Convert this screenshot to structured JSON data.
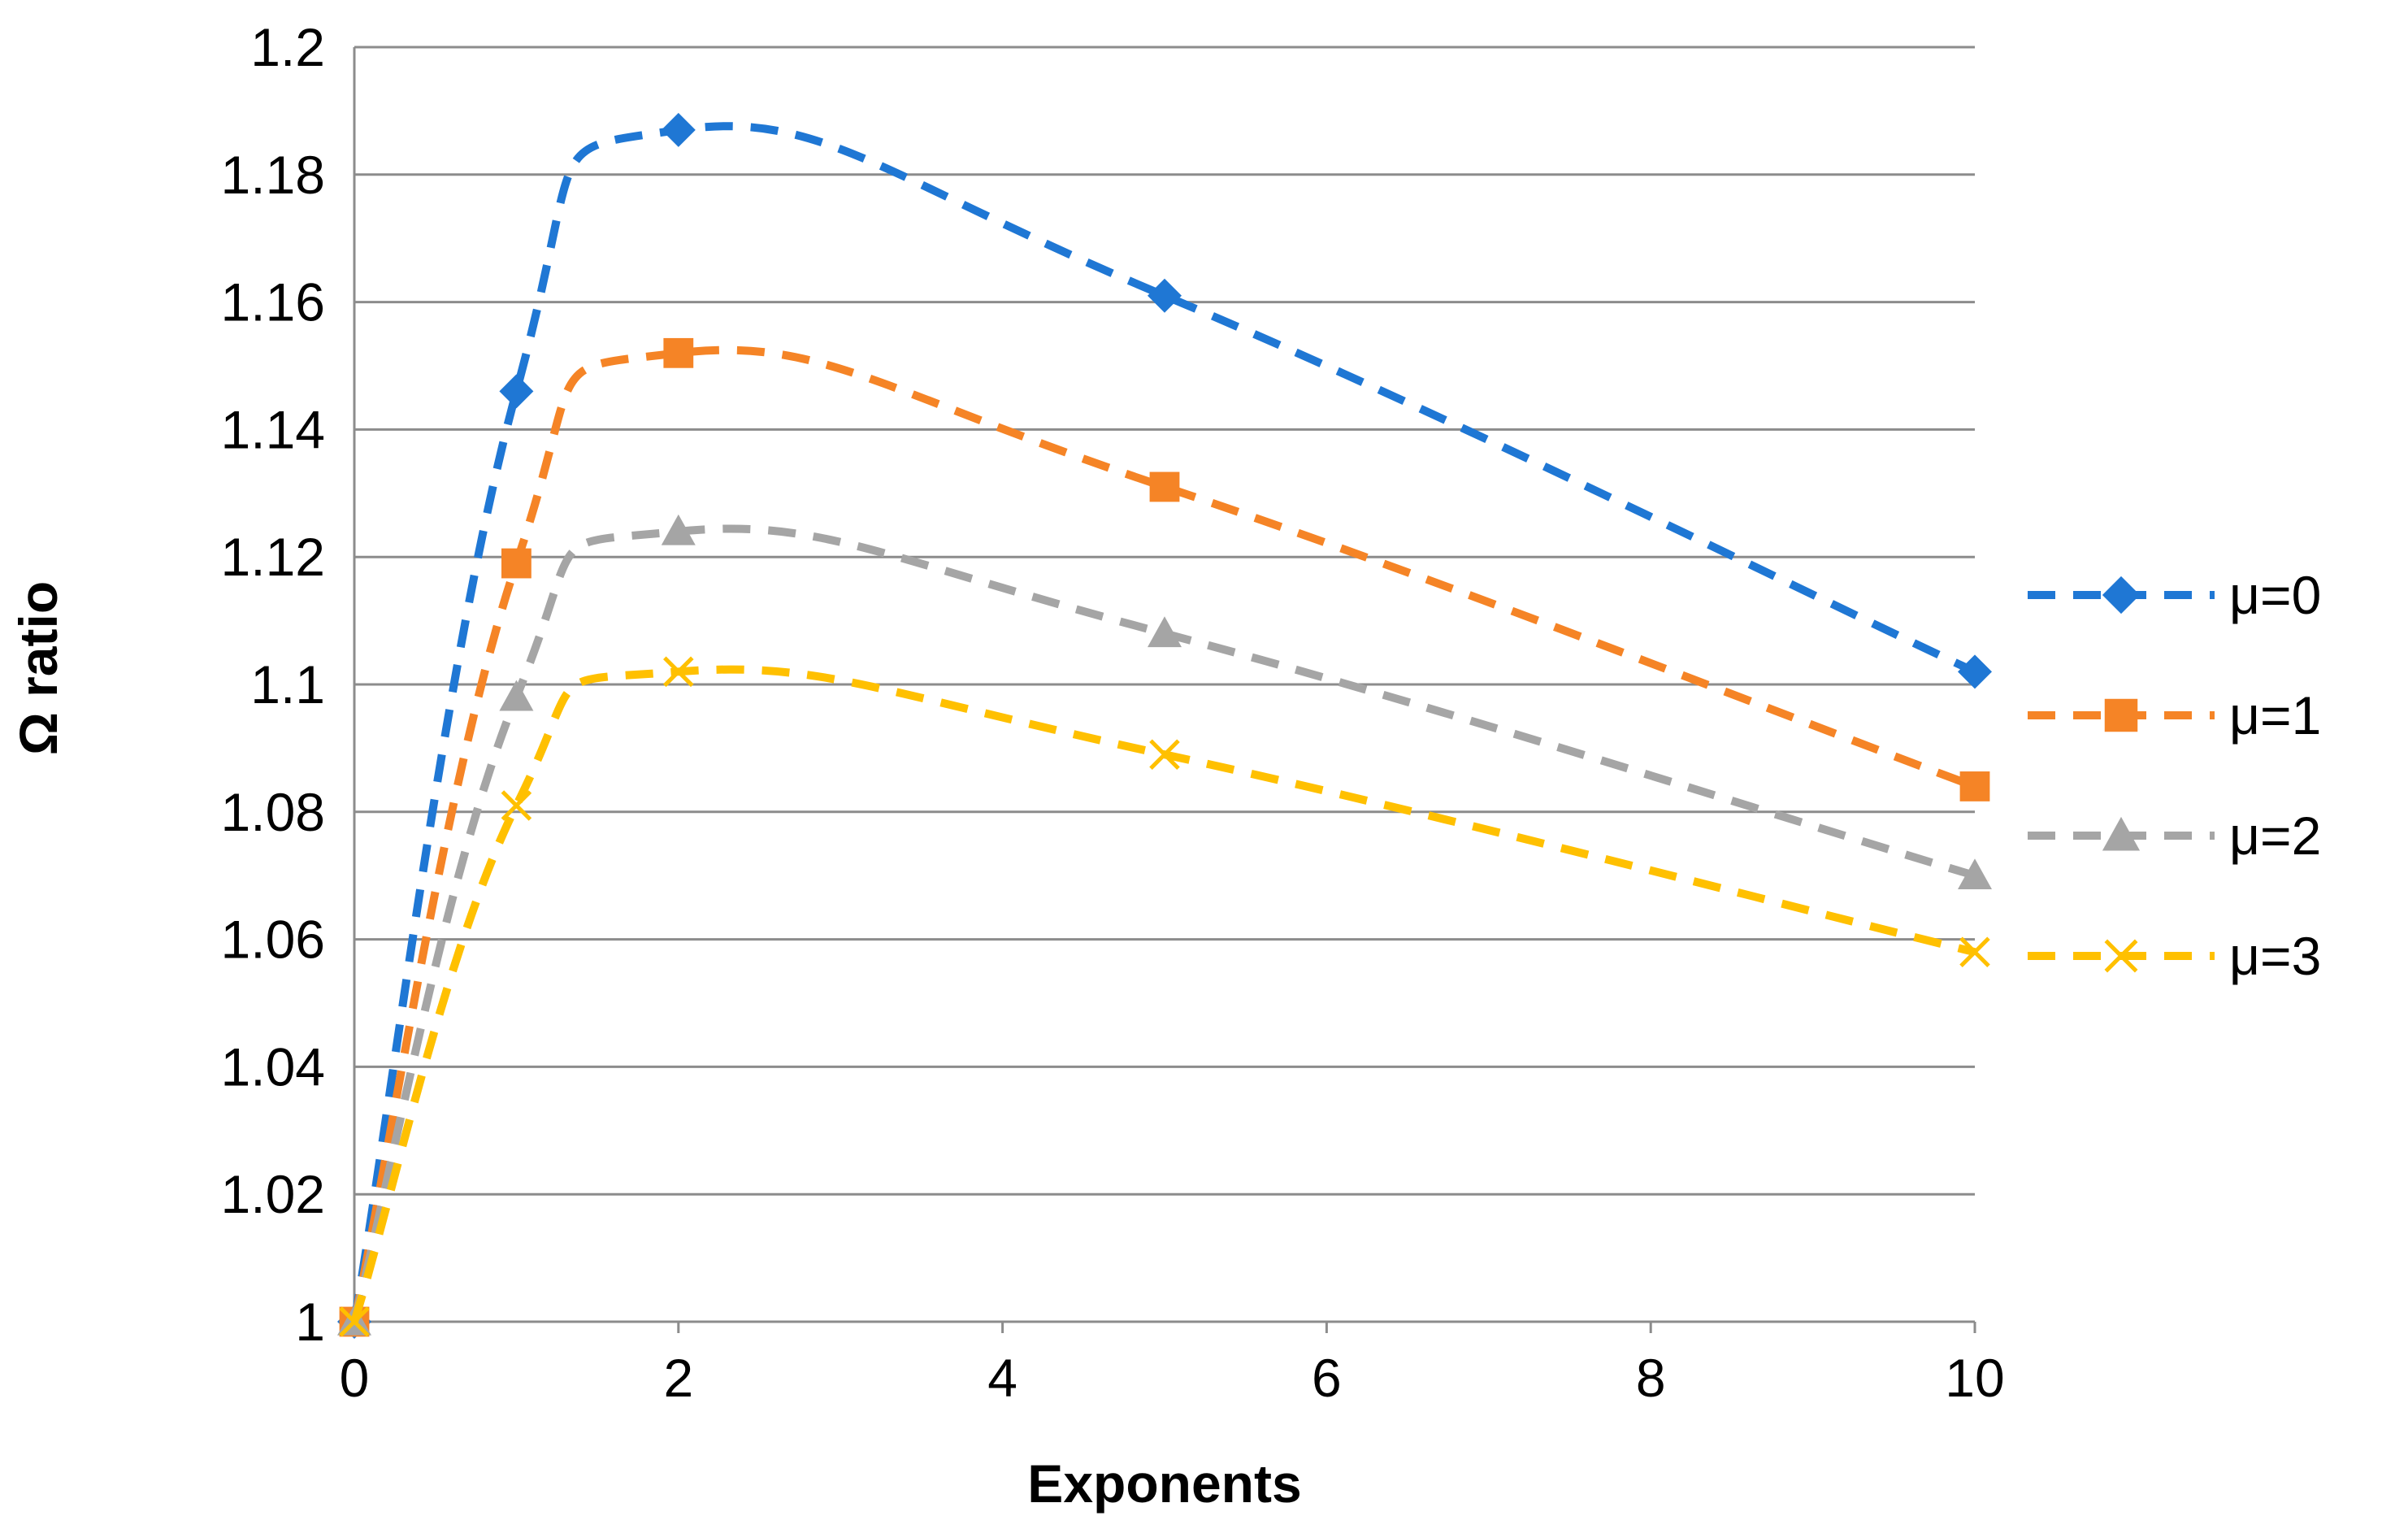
{
  "chart_data": {
    "type": "line",
    "title": "",
    "xlabel": "Exponents",
    "ylabel": "Ω ratio",
    "xlim": [
      0,
      10
    ],
    "ylim": [
      1,
      1.2
    ],
    "xticks": [
      0,
      2,
      4,
      6,
      8,
      10
    ],
    "yticks": [
      1,
      1.02,
      1.04,
      1.06,
      1.08,
      1.1,
      1.12,
      1.14,
      1.16,
      1.18,
      1.2
    ],
    "xtick_labels": [
      "0",
      "2",
      "4",
      "6",
      "8",
      "10"
    ],
    "ytick_labels": [
      "1",
      "1.02",
      "1.04",
      "1.06",
      "1.08",
      "1.1",
      "1.12",
      "1.14",
      "1.16",
      "1.18",
      "1.2"
    ],
    "grid": "horizontal",
    "legend_position": "right",
    "x": [
      0,
      1,
      2,
      5,
      10
    ],
    "series": [
      {
        "name": "μ=0",
        "values": [
          1.0,
          1.146,
          1.187,
          1.161,
          1.102
        ],
        "color": "#1F77D4",
        "marker": "diamond"
      },
      {
        "name": "μ=1",
        "values": [
          1.0,
          1.119,
          1.152,
          1.131,
          1.084
        ],
        "color": "#F58426",
        "marker": "square"
      },
      {
        "name": "μ=2",
        "values": [
          1.0,
          1.098,
          1.124,
          1.108,
          1.07
        ],
        "color": "#A5A5A5",
        "marker": "triangle"
      },
      {
        "name": "μ=3",
        "values": [
          1.0,
          1.081,
          1.102,
          1.089,
          1.058
        ],
        "color": "#FFC000",
        "marker": "x"
      }
    ]
  }
}
